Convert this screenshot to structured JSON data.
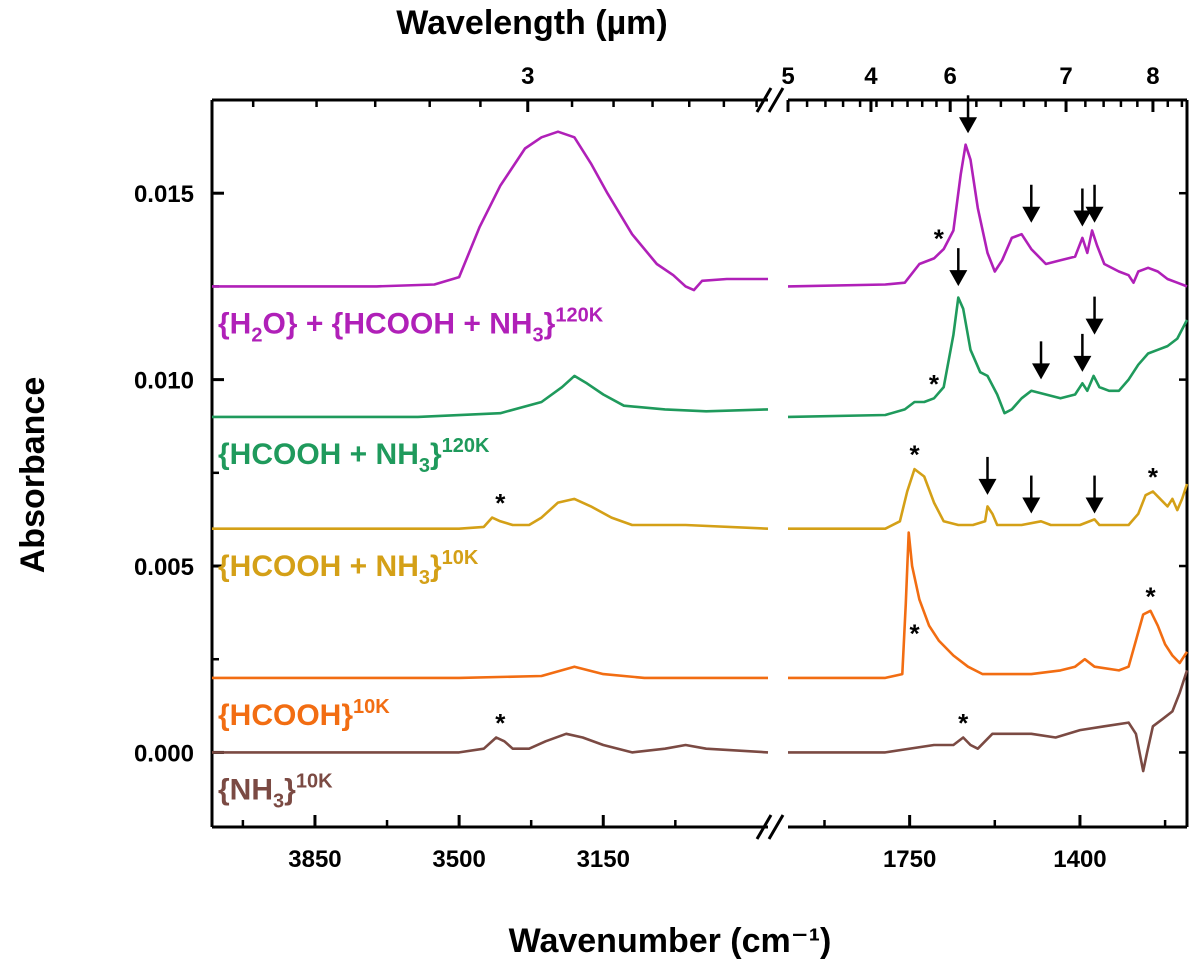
{
  "chart_data": {
    "type": "line",
    "title": "",
    "xlabel": "Wavenumber (cm⁻¹)",
    "ylabel": "Absorbance",
    "top_xlabel": "Wavelength (µm)",
    "x_break": true,
    "x_segments": [
      {
        "range": [
          4100,
          2750
        ],
        "ticks": [
          3850,
          3500,
          3150
        ]
      },
      {
        "range": [
          2000,
          1180
        ],
        "ticks": [
          1750,
          1400
        ]
      }
    ],
    "x_tick_labels": [
      "3850",
      "3500",
      "3150",
      "1750",
      "1400"
    ],
    "top_ticks": [
      3,
      4,
      5,
      6,
      7,
      8
    ],
    "top_tick_labels": [
      "3",
      "4",
      "5",
      "6",
      "7",
      "8"
    ],
    "ylim": [
      -0.002,
      0.0175
    ],
    "y_ticks": [
      0.0,
      0.005,
      0.01,
      0.015
    ],
    "y_tick_labels": [
      "0.000",
      "0.005",
      "0.010",
      "0.015"
    ],
    "series": [
      {
        "name": "{H2O} + {HCOOH + NH3}120K",
        "label_main": "{H",
        "label_sub": "2",
        "label_mid": "O} + {HCOOH + NH",
        "label_sub2": "3",
        "label_end": "}",
        "label_sup": "120K",
        "color": "#b020b8",
        "baseline": 0.0125,
        "points": [
          [
            4100,
            0.0125
          ],
          [
            3700,
            0.0125
          ],
          [
            3560,
            0.01255
          ],
          [
            3500,
            0.01275
          ],
          [
            3450,
            0.0141
          ],
          [
            3400,
            0.0152
          ],
          [
            3340,
            0.0162
          ],
          [
            3300,
            0.0165
          ],
          [
            3260,
            0.01665
          ],
          [
            3220,
            0.0165
          ],
          [
            3180,
            0.0158
          ],
          [
            3140,
            0.015
          ],
          [
            3080,
            0.0139
          ],
          [
            3020,
            0.0131
          ],
          [
            2980,
            0.0128
          ],
          [
            2950,
            0.0125
          ],
          [
            2930,
            0.0124
          ],
          [
            2910,
            0.01265
          ],
          [
            2850,
            0.0127
          ],
          [
            2750,
            0.0127
          ],
          [
            2000,
            0.0125
          ],
          [
            1800,
            0.01255
          ],
          [
            1760,
            0.0126
          ],
          [
            1730,
            0.0131
          ],
          [
            1700,
            0.01325
          ],
          [
            1680,
            0.0135
          ],
          [
            1660,
            0.014
          ],
          [
            1645,
            0.0155
          ],
          [
            1635,
            0.0163
          ],
          [
            1625,
            0.0159
          ],
          [
            1610,
            0.0146
          ],
          [
            1590,
            0.0134
          ],
          [
            1575,
            0.0129
          ],
          [
            1560,
            0.0132
          ],
          [
            1540,
            0.0138
          ],
          [
            1520,
            0.0139
          ],
          [
            1500,
            0.0135
          ],
          [
            1470,
            0.0131
          ],
          [
            1440,
            0.0132
          ],
          [
            1410,
            0.0133
          ],
          [
            1395,
            0.0138
          ],
          [
            1385,
            0.0134
          ],
          [
            1375,
            0.014
          ],
          [
            1365,
            0.0136
          ],
          [
            1350,
            0.0131
          ],
          [
            1320,
            0.0129
          ],
          [
            1300,
            0.0128
          ],
          [
            1290,
            0.0126
          ],
          [
            1280,
            0.0129
          ],
          [
            1260,
            0.013
          ],
          [
            1240,
            0.0129
          ],
          [
            1220,
            0.0127
          ],
          [
            1200,
            0.0126
          ],
          [
            1180,
            0.0125
          ]
        ]
      },
      {
        "name": "{HCOOH + NH3}120K",
        "label_main": "{HCOOH + NH",
        "label_sub": "3",
        "label_end": "}",
        "label_sup": "120K",
        "color": "#1f9a5c",
        "baseline": 0.009,
        "points": [
          [
            4100,
            0.009
          ],
          [
            3600,
            0.009
          ],
          [
            3400,
            0.0091
          ],
          [
            3300,
            0.0094
          ],
          [
            3250,
            0.0098
          ],
          [
            3220,
            0.0101
          ],
          [
            3190,
            0.0099
          ],
          [
            3150,
            0.0096
          ],
          [
            3100,
            0.0093
          ],
          [
            3000,
            0.0092
          ],
          [
            2900,
            0.00915
          ],
          [
            2750,
            0.0092
          ],
          [
            2000,
            0.009
          ],
          [
            1800,
            0.00905
          ],
          [
            1760,
            0.0092
          ],
          [
            1740,
            0.0094
          ],
          [
            1720,
            0.0094
          ],
          [
            1700,
            0.0095
          ],
          [
            1680,
            0.0098
          ],
          [
            1660,
            0.0112
          ],
          [
            1650,
            0.0122
          ],
          [
            1640,
            0.0119
          ],
          [
            1625,
            0.0108
          ],
          [
            1605,
            0.0102
          ],
          [
            1590,
            0.0101
          ],
          [
            1570,
            0.0096
          ],
          [
            1555,
            0.0091
          ],
          [
            1540,
            0.0092
          ],
          [
            1520,
            0.0095
          ],
          [
            1500,
            0.0097
          ],
          [
            1470,
            0.0096
          ],
          [
            1440,
            0.0095
          ],
          [
            1410,
            0.0096
          ],
          [
            1395,
            0.0099
          ],
          [
            1385,
            0.0097
          ],
          [
            1372,
            0.0101
          ],
          [
            1360,
            0.0098
          ],
          [
            1340,
            0.0097
          ],
          [
            1320,
            0.0097
          ],
          [
            1300,
            0.01
          ],
          [
            1280,
            0.0104
          ],
          [
            1260,
            0.0107
          ],
          [
            1240,
            0.0108
          ],
          [
            1220,
            0.0109
          ],
          [
            1200,
            0.0111
          ],
          [
            1180,
            0.0116
          ]
        ]
      },
      {
        "name": "{HCOOH + NH3}10K",
        "label_main": "{HCOOH + NH",
        "label_sub": "3",
        "label_end": "}",
        "label_sup": "10K",
        "color": "#d4a017",
        "baseline": 0.006,
        "points": [
          [
            4100,
            0.006
          ],
          [
            3500,
            0.006
          ],
          [
            3440,
            0.00605
          ],
          [
            3420,
            0.0063
          ],
          [
            3400,
            0.0062
          ],
          [
            3370,
            0.0061
          ],
          [
            3330,
            0.0061
          ],
          [
            3300,
            0.0063
          ],
          [
            3260,
            0.0067
          ],
          [
            3220,
            0.0068
          ],
          [
            3180,
            0.0066
          ],
          [
            3130,
            0.0063
          ],
          [
            3080,
            0.0061
          ],
          [
            2950,
            0.0061
          ],
          [
            2750,
            0.006
          ],
          [
            2000,
            0.006
          ],
          [
            1800,
            0.006
          ],
          [
            1770,
            0.0062
          ],
          [
            1755,
            0.007
          ],
          [
            1740,
            0.0076
          ],
          [
            1720,
            0.0074
          ],
          [
            1700,
            0.0067
          ],
          [
            1680,
            0.0062
          ],
          [
            1650,
            0.0061
          ],
          [
            1620,
            0.0061
          ],
          [
            1595,
            0.0062
          ],
          [
            1590,
            0.0066
          ],
          [
            1580,
            0.0064
          ],
          [
            1570,
            0.0061
          ],
          [
            1520,
            0.0061
          ],
          [
            1480,
            0.0062
          ],
          [
            1460,
            0.0061
          ],
          [
            1400,
            0.0061
          ],
          [
            1370,
            0.00625
          ],
          [
            1360,
            0.0061
          ],
          [
            1300,
            0.0061
          ],
          [
            1280,
            0.0064
          ],
          [
            1265,
            0.0069
          ],
          [
            1250,
            0.007
          ],
          [
            1235,
            0.0068
          ],
          [
            1220,
            0.0066
          ],
          [
            1210,
            0.0068
          ],
          [
            1200,
            0.0065
          ],
          [
            1190,
            0.0068
          ],
          [
            1180,
            0.0072
          ]
        ]
      },
      {
        "name": "{HCOOH}10K",
        "label_main": "{HCOOH",
        "label_sub": "",
        "label_end": "}",
        "label_sup": "10K",
        "color": "#f26d12",
        "baseline": 0.002,
        "points": [
          [
            4100,
            0.002
          ],
          [
            3500,
            0.002
          ],
          [
            3300,
            0.00205
          ],
          [
            3220,
            0.0023
          ],
          [
            3150,
            0.0021
          ],
          [
            3050,
            0.002
          ],
          [
            2750,
            0.002
          ],
          [
            2000,
            0.002
          ],
          [
            1800,
            0.002
          ],
          [
            1765,
            0.0021
          ],
          [
            1758,
            0.004
          ],
          [
            1752,
            0.0059
          ],
          [
            1745,
            0.005
          ],
          [
            1730,
            0.0041
          ],
          [
            1710,
            0.0034
          ],
          [
            1690,
            0.003
          ],
          [
            1660,
            0.0026
          ],
          [
            1630,
            0.0023
          ],
          [
            1600,
            0.0021
          ],
          [
            1500,
            0.0021
          ],
          [
            1440,
            0.0022
          ],
          [
            1410,
            0.0023
          ],
          [
            1390,
            0.0025
          ],
          [
            1370,
            0.0023
          ],
          [
            1320,
            0.0022
          ],
          [
            1300,
            0.0023
          ],
          [
            1285,
            0.003
          ],
          [
            1270,
            0.0037
          ],
          [
            1255,
            0.0038
          ],
          [
            1240,
            0.0034
          ],
          [
            1225,
            0.0029
          ],
          [
            1210,
            0.0026
          ],
          [
            1195,
            0.0024
          ],
          [
            1180,
            0.0027
          ]
        ]
      },
      {
        "name": "{NH3}10K",
        "label_main": "{NH",
        "label_sub": "3",
        "label_end": "}",
        "label_sup": "10K",
        "color": "#7b4a43",
        "baseline": 0.0,
        "points": [
          [
            4100,
            0.0
          ],
          [
            3500,
            0.0
          ],
          [
            3440,
            0.0001
          ],
          [
            3410,
            0.0004
          ],
          [
            3390,
            0.0003
          ],
          [
            3370,
            0.0001
          ],
          [
            3330,
            0.0001
          ],
          [
            3290,
            0.0003
          ],
          [
            3240,
            0.0005
          ],
          [
            3200,
            0.0004
          ],
          [
            3150,
            0.0002
          ],
          [
            3080,
            0.0
          ],
          [
            3000,
            0.0001
          ],
          [
            2950,
            0.0002
          ],
          [
            2900,
            0.0001
          ],
          [
            2750,
            0.0
          ],
          [
            2000,
            0.0
          ],
          [
            1800,
            0.0
          ],
          [
            1700,
            0.0002
          ],
          [
            1660,
            0.0002
          ],
          [
            1640,
            0.0004
          ],
          [
            1625,
            0.0002
          ],
          [
            1610,
            0.0001
          ],
          [
            1580,
            0.0005
          ],
          [
            1500,
            0.0005
          ],
          [
            1450,
            0.0004
          ],
          [
            1400,
            0.0006
          ],
          [
            1350,
            0.0007
          ],
          [
            1300,
            0.0008
          ],
          [
            1285,
            0.0005
          ],
          [
            1270,
            -0.0005
          ],
          [
            1262,
            0.0
          ],
          [
            1250,
            0.0007
          ],
          [
            1230,
            0.0009
          ],
          [
            1210,
            0.0011
          ],
          [
            1195,
            0.0016
          ],
          [
            1180,
            0.0022
          ]
        ]
      }
    ],
    "annotations": {
      "stars": [
        {
          "series": 0,
          "x": 1690,
          "y": 0.0136
        },
        {
          "series": 1,
          "x": 1700,
          "y": 0.0097
        },
        {
          "series": 2,
          "x": 3400,
          "y": 0.0065
        },
        {
          "series": 2,
          "x": 1740,
          "y": 0.0078
        },
        {
          "series": 2,
          "x": 1250,
          "y": 0.0072
        },
        {
          "series": 3,
          "x": 1740,
          "y": 0.003
        },
        {
          "series": 3,
          "x": 1255,
          "y": 0.004
        },
        {
          "series": 4,
          "x": 3400,
          "y": 0.0006
        },
        {
          "series": 4,
          "x": 1640,
          "y": 0.0006
        }
      ],
      "arrows": [
        {
          "x": 1630,
          "y": 0.0165
        },
        {
          "x": 1500,
          "y": 0.0141
        },
        {
          "x": 1395,
          "y": 0.014
        },
        {
          "x": 1370,
          "y": 0.0141
        },
        {
          "x": 1650,
          "y": 0.0124
        },
        {
          "x": 1480,
          "y": 0.0099
        },
        {
          "x": 1395,
          "y": 0.0101
        },
        {
          "x": 1370,
          "y": 0.0111
        },
        {
          "x": 1590,
          "y": 0.0068
        },
        {
          "x": 1500,
          "y": 0.0063
        },
        {
          "x": 1370,
          "y": 0.0063
        }
      ],
      "star_symbol": "*"
    }
  }
}
